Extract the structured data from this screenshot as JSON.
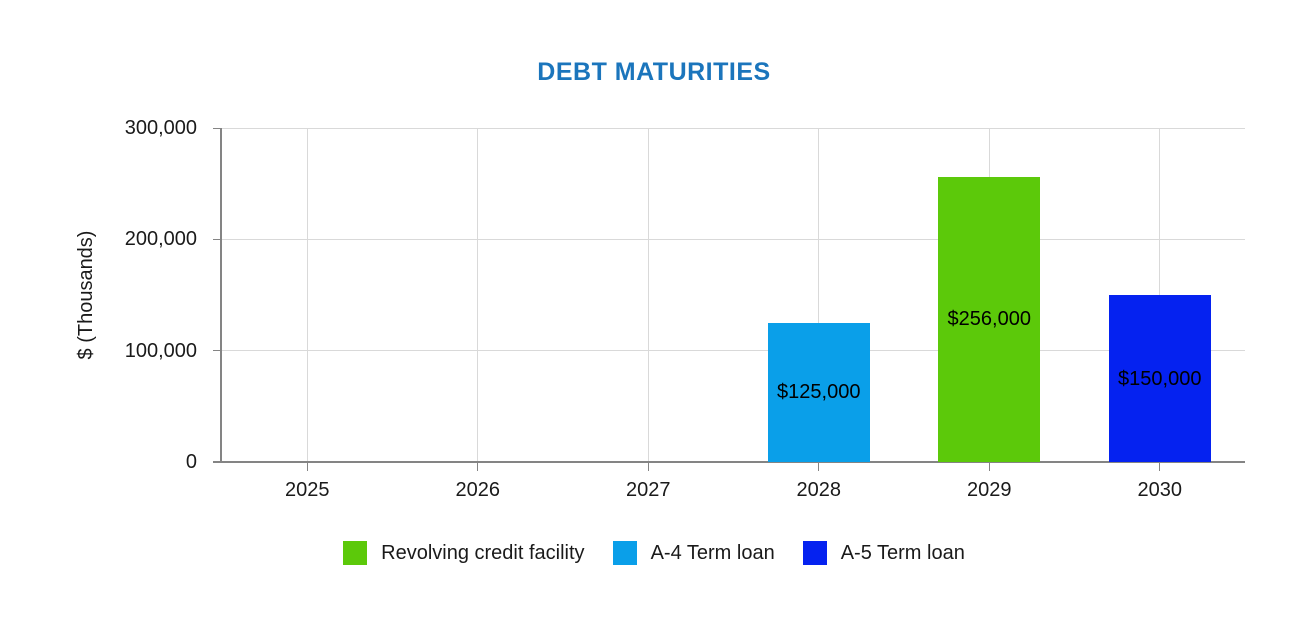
{
  "chart_data": {
    "type": "bar",
    "title": "DEBT MATURITIES",
    "title_color": "#1B75BC",
    "ylabel": "$ (Thousands)",
    "xlabel": "",
    "categories": [
      "2025",
      "2026",
      "2027",
      "2028",
      "2029",
      "2030"
    ],
    "ylim": [
      0,
      300000
    ],
    "y_ticks": [
      0,
      100000,
      200000,
      300000
    ],
    "y_tick_labels": [
      "0",
      "100,000",
      "200,000",
      "300,000"
    ],
    "grid": true,
    "axis_color": "#848484",
    "gridline_color": "#d9d9d9",
    "legend_position": "bottom",
    "series": [
      {
        "name": "Revolving credit facility",
        "color": "#5CC90A",
        "values": [
          null,
          null,
          null,
          null,
          256000,
          null
        ]
      },
      {
        "name": "A-4 Term loan",
        "color": "#0A9FE9",
        "values": [
          null,
          null,
          null,
          125000,
          null,
          null
        ]
      },
      {
        "name": "A-5 Term loan",
        "color": "#0522F0",
        "values": [
          null,
          null,
          null,
          null,
          null,
          150000
        ]
      }
    ],
    "bars": [
      {
        "category": "2028",
        "series": "A-4 Term loan",
        "value": 125000,
        "label": "$125,000",
        "color": "#0A9FE9"
      },
      {
        "category": "2029",
        "series": "Revolving credit facility",
        "value": 256000,
        "label": "$256,000",
        "color": "#5CC90A"
      },
      {
        "category": "2030",
        "series": "A-5 Term loan",
        "value": 150000,
        "label": "$150,000",
        "color": "#0522F0"
      }
    ]
  }
}
